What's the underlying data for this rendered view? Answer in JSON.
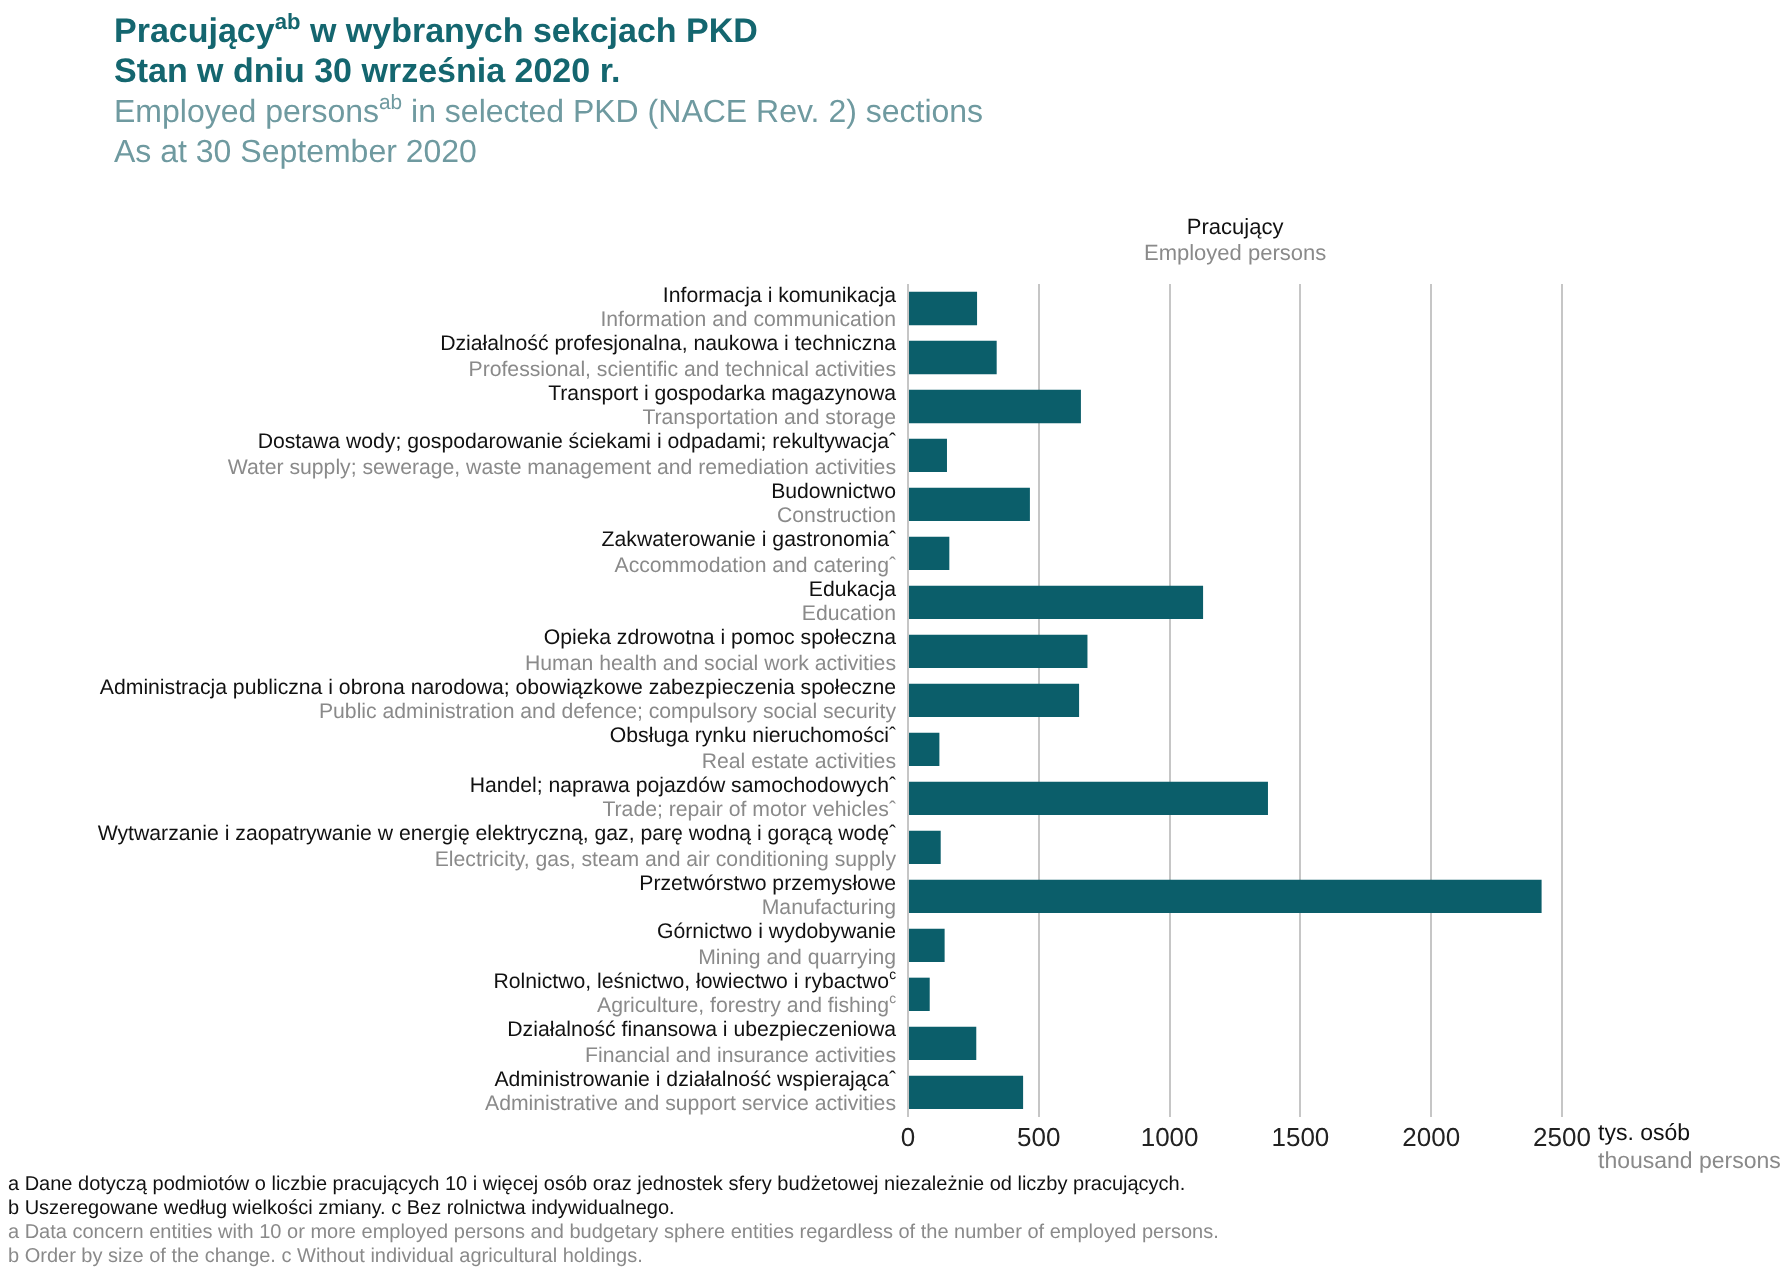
{
  "chart_data": {
    "type": "bar",
    "orientation": "horizontal",
    "title": "Pracujący$^{ab}$ w wybranych sekcjach PKD\nStan w dniu 30 września 2020 r.",
    "subtitle": "Employed persons$^{ab}$ in selected PKD (NACE Rev. 2) sections\nAs at 30 September 2020",
    "categories": [
      "Informacja i komunikacja\nInformation and communication",
      "Działalność profesjonalna, naukowa i techniczna\nProfessional, scientific and technical activities",
      "Transport i gospodarka magazynowa\nTransportation and storage",
      "Dostawa wody; gospodarowanie ściekami i odpadami; rekultywacjaˆ\nWater supply; sewerage, waste management and remediation activities",
      "Budownictwo\nConstruction",
      "Zakwaterowanie i gastronomiaˆ\nAccommodation and cateringˆ",
      "Edukacja\nEducation",
      "Opieka zdrowotna i pomoc społeczna\nHuman health and social work activities",
      "Administracja publiczna i obrona narodowa; obowiązkowe zabezpieczenia społeczne\nPublic administration and defence; compulsory social security",
      "Obsługa rynku nieruchomościˆ\nReal estate activities",
      "Handel; naprawa pojazdów samochodowychˆ\nTrade; repair of motor vehiclesˆ",
      "Wytwarzanie i zaopatrywanie w energię elektryczną, gaz, parę wodną i gorącą wodęˆ\nElectricity, gas, steam and air conditioning supply",
      "Przetwórstwo przemysłowe\nManufacturing",
      "Górnictwo i wydobywanie\nMining and quarrying",
      "Rolnictwo, leśnictwo, łowiectwo i rybactwo$^{c}$\nAgriculture, forestry and fishing$^{c}$",
      "Działalność finansowa i ubezpieczeniowa\nFinancial and insurance activities",
      "Administrowanie i działalność wspierającaˆ\nAdministrative and support service activities"
    ],
    "series": [
      {
        "name": "Pracujący\nEmployed persons",
        "color": "#0b5e6a",
        "values": [
          264,
          339,
          661,
          149,
          466,
          158,
          1128,
          686,
          654,
          120,
          1376,
          125,
          2422,
          140,
          83,
          261,
          440
        ]
      }
    ],
    "xlabel": "tys. osób\nthousand persons",
    "xlim": [
      0,
      2500
    ],
    "xticks": [
      0,
      500,
      1000,
      1500,
      2000,
      2500
    ],
    "grid": "x",
    "annotations": [
      "a Dane dotyczą podmiotów o liczbie pracujących 10 i więcej osób oraz jednostek sfery budżetowej niezależnie od liczby pracujących.\nb Uszeregowane według wielkości zmiany. c Bez rolnictwa indywidualnego.",
      "a Data concern entities with 10 or more employed persons and budgetary sphere entities regardless of the number of employed persons.\nb Order by size of the change. c Without individual agricultural holdings."
    ]
  }
}
